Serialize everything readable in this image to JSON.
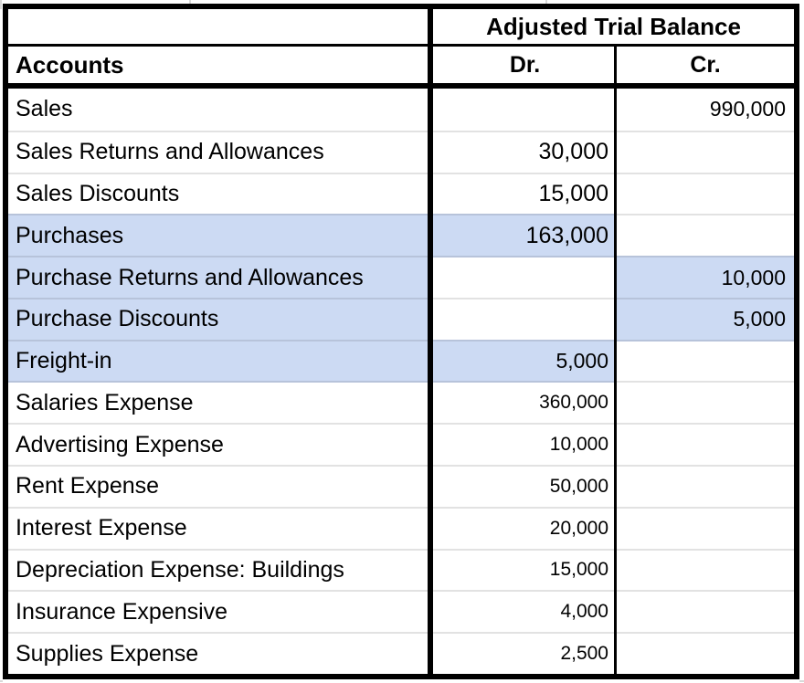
{
  "table": {
    "title": "Adjusted Trial Balance",
    "accounts_header": "Accounts",
    "dr_header": "Dr.",
    "cr_header": "Cr.",
    "rows": [
      {
        "account": "Sales",
        "dr": "",
        "cr": "990,000",
        "highlight": "none"
      },
      {
        "account": "Sales Returns and Allowances",
        "dr": "30,000",
        "cr": "",
        "highlight": "none"
      },
      {
        "account": "Sales Discounts",
        "dr": "15,000",
        "cr": "",
        "highlight": "none"
      },
      {
        "account": "Purchases",
        "dr": "163,000",
        "cr": "",
        "highlight": "dr"
      },
      {
        "account": "Purchase Returns and Allowances",
        "dr": "",
        "cr": "10,000",
        "highlight": "cr"
      },
      {
        "account": "Purchase Discounts",
        "dr": "",
        "cr": "5,000",
        "highlight": "cr"
      },
      {
        "account": "Freight-in",
        "dr": "5,000",
        "cr": "",
        "highlight": "dr"
      },
      {
        "account": "Salaries Expense",
        "dr": "360,000",
        "cr": "",
        "highlight": "none"
      },
      {
        "account": "Advertising Expense",
        "dr": "10,000",
        "cr": "",
        "highlight": "none"
      },
      {
        "account": "Rent Expense",
        "dr": "50,000",
        "cr": "",
        "highlight": "none"
      },
      {
        "account": "Interest Expense",
        "dr": "20,000",
        "cr": "",
        "highlight": "none"
      },
      {
        "account": "Depreciation Expense: Buildings",
        "dr": "15,000",
        "cr": "",
        "highlight": "none"
      },
      {
        "account": "Insurance Expensive",
        "dr": "4,000",
        "cr": "",
        "highlight": "none"
      },
      {
        "account": "Supplies Expense",
        "dr": "2,500",
        "cr": "",
        "highlight": "none"
      }
    ]
  },
  "colors": {
    "highlight_fill": "#ccdaf3",
    "gridline_normal": "#e2e2e2",
    "gridline_on_highlight": "#b7c3da",
    "border": "#000000"
  }
}
